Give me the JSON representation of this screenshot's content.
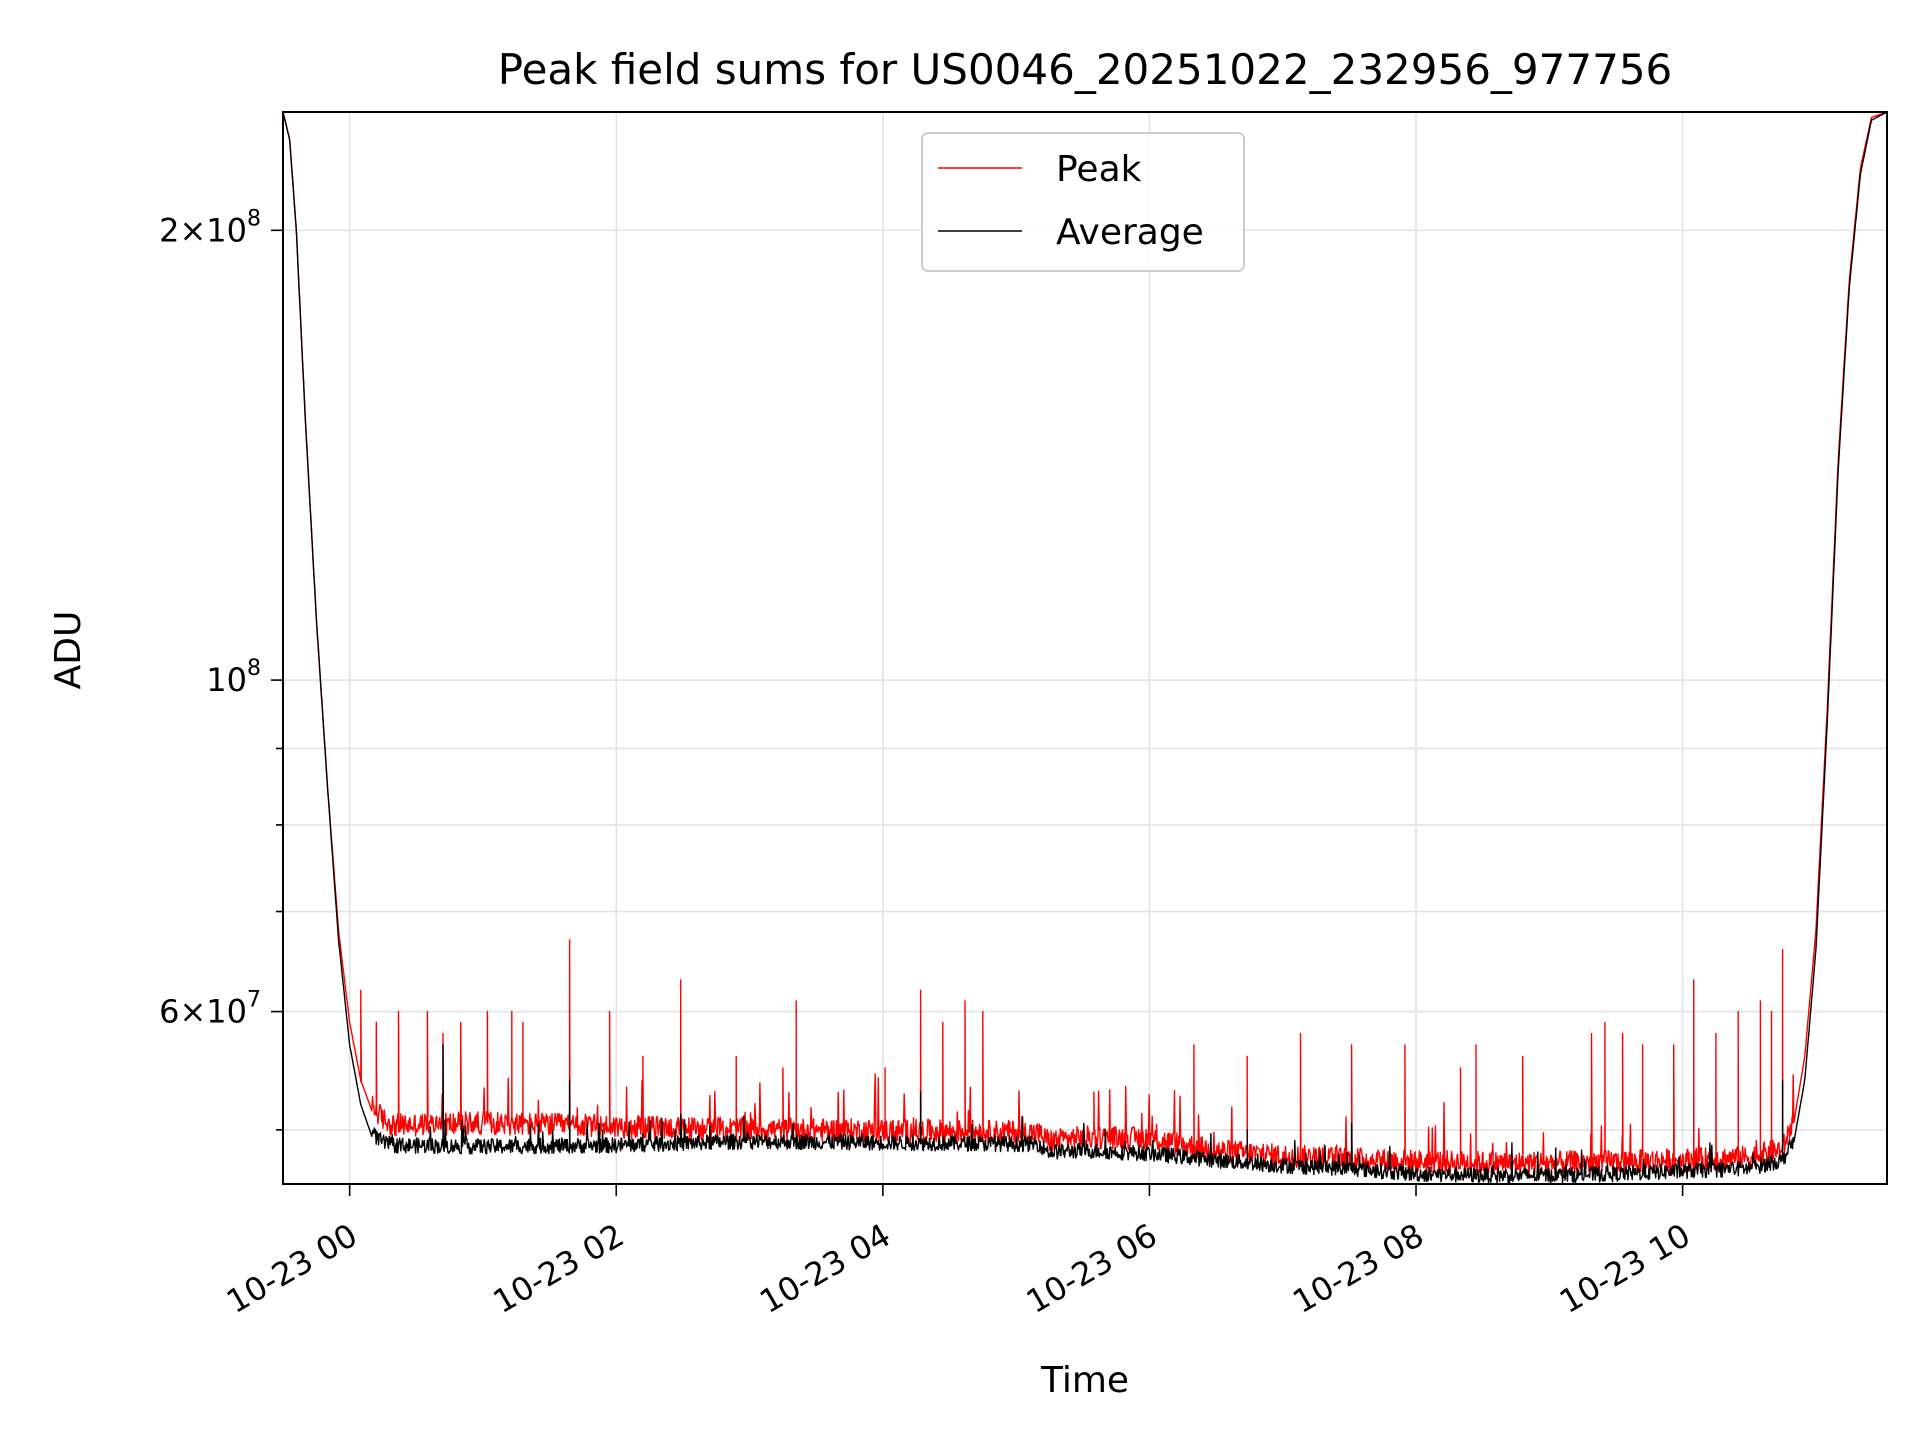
{
  "chart_data": {
    "type": "line",
    "title": "Peak field sums for US0046_20251022_232956_977756",
    "xlabel": "Time",
    "ylabel": "ADU",
    "yscale": "log",
    "xlim": [
      "2025-10-22 23:30",
      "2025-10-23 11:32"
    ],
    "ylim": [
      46000000,
      240000000
    ],
    "grid": true,
    "legend_position": "upper center",
    "x_ticks": [
      "10-23 00",
      "10-23 02",
      "10-23 04",
      "10-23 06",
      "10-23 08",
      "10-23 10"
    ],
    "y_ticks": [
      {
        "value": 200000000,
        "mantissa": "2",
        "exponent": "8"
      },
      {
        "value": 100000000,
        "mantissa": "",
        "exponent": "8"
      },
      {
        "value": 60000000,
        "mantissa": "6",
        "exponent": "7"
      }
    ],
    "colors": {
      "peak": "#ff0000",
      "average": "#000000"
    },
    "series": [
      {
        "name": "Peak",
        "color": "#ff0000",
        "points": [
          [
            "2025-10-22 23:30",
            240000000
          ],
          [
            "2025-10-22 23:33",
            230000000
          ],
          [
            "2025-10-22 23:36",
            200000000
          ],
          [
            "2025-10-22 23:40",
            150000000
          ],
          [
            "2025-10-22 23:45",
            110000000
          ],
          [
            "2025-10-22 23:50",
            85000000
          ],
          [
            "2025-10-22 23:55",
            68000000
          ],
          [
            "2025-10-23 00:00",
            59000000
          ],
          [
            "2025-10-23 00:05",
            54000000
          ],
          [
            "2025-10-23 00:10",
            51500000
          ],
          [
            "2025-10-23 00:15",
            50500000
          ],
          [
            "2025-10-23 00:20",
            50000000
          ],
          [
            "2025-10-23 01:00",
            50200000
          ],
          [
            "2025-10-23 02:00",
            49900000
          ],
          [
            "2025-10-23 03:00",
            49700000
          ],
          [
            "2025-10-23 04:00",
            49600000
          ],
          [
            "2025-10-23 05:00",
            49500000
          ],
          [
            "2025-10-23 05:10",
            49400000
          ],
          [
            "2025-10-23 05:15",
            48800000
          ],
          [
            "2025-10-23 05:30",
            49100000
          ],
          [
            "2025-10-23 06:00",
            49000000
          ],
          [
            "2025-10-23 06:30",
            48100000
          ],
          [
            "2025-10-23 07:00",
            47700000
          ],
          [
            "2025-10-23 07:30",
            47500000
          ],
          [
            "2025-10-23 08:00",
            47300000
          ],
          [
            "2025-10-23 08:30",
            47200000
          ],
          [
            "2025-10-23 09:00",
            47200000
          ],
          [
            "2025-10-23 09:30",
            47300000
          ],
          [
            "2025-10-23 10:00",
            47400000
          ],
          [
            "2025-10-23 10:30",
            47600000
          ],
          [
            "2025-10-23 10:45",
            48200000
          ],
          [
            "2025-10-23 10:50",
            50500000
          ],
          [
            "2025-10-23 10:55",
            56000000
          ],
          [
            "2025-10-23 11:00",
            68000000
          ],
          [
            "2025-10-23 11:05",
            95000000
          ],
          [
            "2025-10-23 11:10",
            140000000
          ],
          [
            "2025-10-23 11:15",
            185000000
          ],
          [
            "2025-10-23 11:20",
            220000000
          ],
          [
            "2025-10-23 11:25",
            238000000
          ],
          [
            "2025-10-23 11:32",
            240000000
          ]
        ],
        "spikes": [
          [
            "2025-10-23 00:05",
            62000000
          ],
          [
            "2025-10-23 00:12",
            59000000
          ],
          [
            "2025-10-23 00:22",
            60000000
          ],
          [
            "2025-10-23 00:35",
            60000000
          ],
          [
            "2025-10-23 00:42",
            58000000
          ],
          [
            "2025-10-23 00:50",
            59000000
          ],
          [
            "2025-10-23 01:02",
            60000000
          ],
          [
            "2025-10-23 01:13",
            60000000
          ],
          [
            "2025-10-23 01:18",
            59000000
          ],
          [
            "2025-10-23 01:39",
            67000000
          ],
          [
            "2025-10-23 01:57",
            60000000
          ],
          [
            "2025-10-23 02:12",
            56000000
          ],
          [
            "2025-10-23 02:29",
            63000000
          ],
          [
            "2025-10-23 02:54",
            56000000
          ],
          [
            "2025-10-23 03:15",
            55000000
          ],
          [
            "2025-10-23 03:21",
            61000000
          ],
          [
            "2025-10-23 04:01",
            55000000
          ],
          [
            "2025-10-23 04:17",
            62000000
          ],
          [
            "2025-10-23 04:27",
            59000000
          ],
          [
            "2025-10-23 04:37",
            61000000
          ],
          [
            "2025-10-23 04:45",
            60000000
          ],
          [
            "2025-10-23 05:35",
            53000000
          ],
          [
            "2025-10-23 06:20",
            57000000
          ],
          [
            "2025-10-23 06:44",
            56000000
          ],
          [
            "2025-10-23 07:08",
            58000000
          ],
          [
            "2025-10-23 07:31",
            57000000
          ],
          [
            "2025-10-23 07:55",
            57000000
          ],
          [
            "2025-10-23 08:20",
            55000000
          ],
          [
            "2025-10-23 08:27",
            57000000
          ],
          [
            "2025-10-23 08:48",
            56000000
          ],
          [
            "2025-10-23 09:19",
            58000000
          ],
          [
            "2025-10-23 09:25",
            59000000
          ],
          [
            "2025-10-23 09:33",
            58000000
          ],
          [
            "2025-10-23 09:42",
            57000000
          ],
          [
            "2025-10-23 09:56",
            57000000
          ],
          [
            "2025-10-23 10:05",
            63000000
          ],
          [
            "2025-10-23 10:15",
            58000000
          ],
          [
            "2025-10-23 10:25",
            60000000
          ],
          [
            "2025-10-23 10:35",
            61000000
          ],
          [
            "2025-10-23 10:40",
            60000000
          ],
          [
            "2025-10-23 10:45",
            66000000
          ]
        ]
      },
      {
        "name": "Average",
        "color": "#000000",
        "points": [
          [
            "2025-10-22 23:30",
            240000000
          ],
          [
            "2025-10-22 23:33",
            230000000
          ],
          [
            "2025-10-22 23:36",
            200000000
          ],
          [
            "2025-10-22 23:40",
            150000000
          ],
          [
            "2025-10-22 23:45",
            110000000
          ],
          [
            "2025-10-22 23:50",
            85000000
          ],
          [
            "2025-10-22 23:55",
            67000000
          ],
          [
            "2025-10-23 00:00",
            57000000
          ],
          [
            "2025-10-23 00:05",
            52000000
          ],
          [
            "2025-10-23 00:10",
            49500000
          ],
          [
            "2025-10-23 00:15",
            48800000
          ],
          [
            "2025-10-23 00:20",
            48600000
          ],
          [
            "2025-10-23 01:00",
            48500000
          ],
          [
            "2025-10-23 02:00",
            48600000
          ],
          [
            "2025-10-23 03:00",
            48900000
          ],
          [
            "2025-10-23 04:00",
            48800000
          ],
          [
            "2025-10-23 05:00",
            48700000
          ],
          [
            "2025-10-23 05:10",
            48700000
          ],
          [
            "2025-10-23 05:15",
            48100000
          ],
          [
            "2025-10-23 05:30",
            48200000
          ],
          [
            "2025-10-23 06:00",
            48000000
          ],
          [
            "2025-10-23 06:30",
            47500000
          ],
          [
            "2025-10-23 07:00",
            47100000
          ],
          [
            "2025-10-23 07:30",
            46900000
          ],
          [
            "2025-10-23 08:00",
            46500000
          ],
          [
            "2025-10-23 08:30",
            46400000
          ],
          [
            "2025-10-23 09:00",
            46400000
          ],
          [
            "2025-10-23 09:30",
            46500000
          ],
          [
            "2025-10-23 10:00",
            46700000
          ],
          [
            "2025-10-23 10:30",
            46900000
          ],
          [
            "2025-10-23 10:45",
            47500000
          ],
          [
            "2025-10-23 10:50",
            49000000
          ],
          [
            "2025-10-23 10:55",
            54000000
          ],
          [
            "2025-10-23 11:00",
            66000000
          ],
          [
            "2025-10-23 11:05",
            93000000
          ],
          [
            "2025-10-23 11:10",
            138000000
          ],
          [
            "2025-10-23 11:15",
            183000000
          ],
          [
            "2025-10-23 11:20",
            218000000
          ],
          [
            "2025-10-23 11:25",
            237000000
          ],
          [
            "2025-10-23 11:32",
            240000000
          ]
        ],
        "spikes": [
          [
            "2025-10-23 00:42",
            57000000
          ],
          [
            "2025-10-23 01:39",
            54000000
          ],
          [
            "2025-10-23 04:17",
            53000000
          ],
          [
            "2025-10-23 06:44",
            50000000
          ],
          [
            "2025-10-23 07:31",
            50500000
          ],
          [
            "2025-10-23 10:45",
            54000000
          ]
        ]
      }
    ]
  }
}
